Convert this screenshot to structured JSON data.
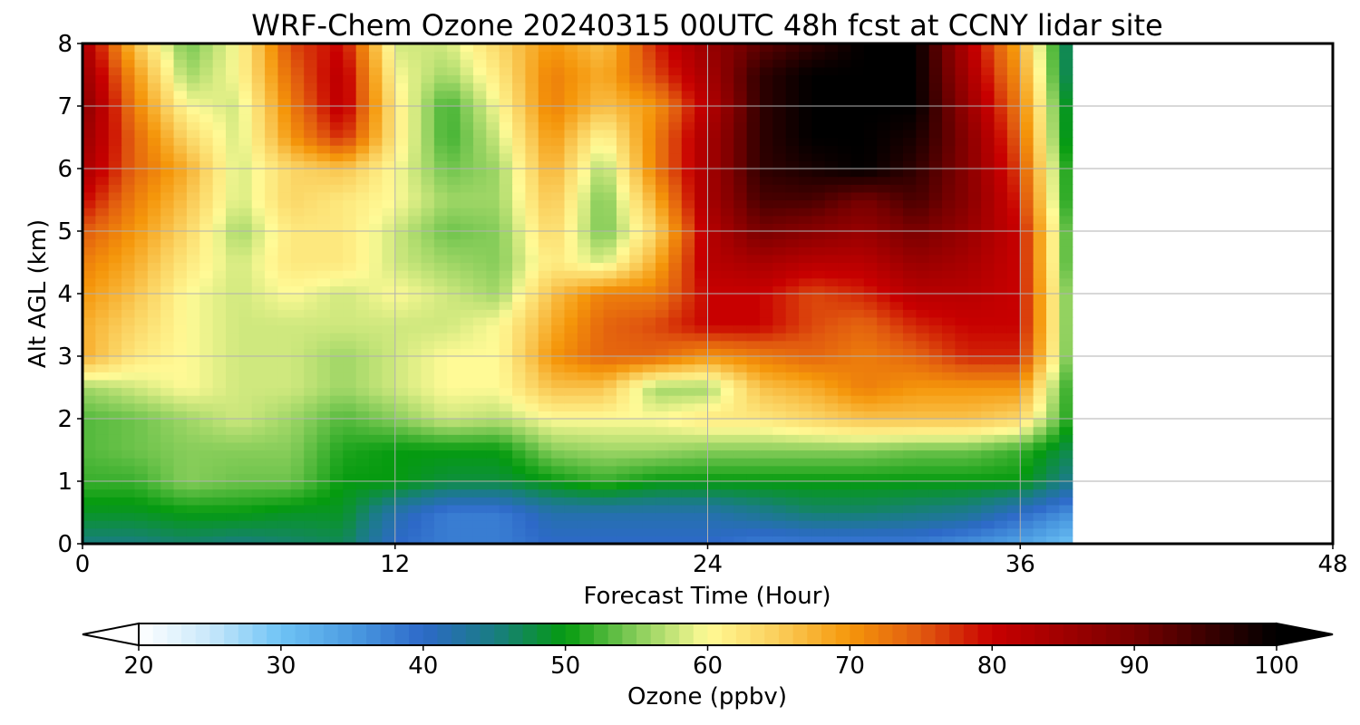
{
  "chart_data": {
    "type": "heatmap",
    "title": "WRF-Chem Ozone  20240315 00UTC 48h fcst at CCNY lidar site",
    "xlabel": "Forecast Time (Hour)",
    "ylabel": "Alt AGL (km)",
    "xlim": [
      0,
      48
    ],
    "ylim": [
      0,
      8
    ],
    "x_ticks": [
      "0",
      "12",
      "24",
      "36",
      "48"
    ],
    "y_ticks": [
      "0",
      "1",
      "2",
      "3",
      "4",
      "5",
      "6",
      "7",
      "8"
    ],
    "grid": true,
    "colorbar": {
      "label": "Ozone  (ppbv)",
      "range": [
        20,
        100
      ],
      "ticks": [
        "20",
        "30",
        "40",
        "50",
        "60",
        "70",
        "80",
        "90",
        "100"
      ],
      "extend": "both"
    },
    "data_extent_hours": 38,
    "x": [
      0,
      2,
      4,
      6,
      8,
      10,
      12,
      14,
      16,
      18,
      20,
      22,
      24,
      26,
      28,
      30,
      32,
      34,
      36,
      38
    ],
    "y": [
      0,
      0.5,
      1,
      1.5,
      2,
      2.5,
      3,
      3.5,
      4,
      4.5,
      5,
      5.5,
      6,
      6.5,
      7,
      7.5,
      8
    ],
    "z": [
      [
        45,
        45,
        46,
        45,
        46,
        47,
        40,
        38,
        38,
        40,
        40,
        40,
        40,
        38,
        38,
        38,
        38,
        36,
        34,
        30
      ],
      [
        49,
        49,
        50,
        50,
        49,
        49,
        42,
        38,
        38,
        42,
        42,
        42,
        42,
        44,
        46,
        46,
        45,
        44,
        40,
        36
      ],
      [
        52,
        52,
        55,
        54,
        54,
        50,
        50,
        48,
        48,
        50,
        52,
        50,
        50,
        50,
        50,
        50,
        50,
        50,
        50,
        44
      ],
      [
        53,
        54,
        55,
        55,
        55,
        51,
        50,
        50,
        50,
        55,
        56,
        56,
        55,
        55,
        55,
        55,
        54,
        54,
        52,
        47
      ],
      [
        53,
        54,
        56,
        58,
        56,
        53,
        55,
        58,
        57,
        60,
        60,
        60,
        62,
        62,
        64,
        66,
        66,
        66,
        64,
        50
      ],
      [
        56,
        58,
        60,
        58,
        58,
        56,
        58,
        60,
        60,
        66,
        66,
        56,
        56,
        66,
        68,
        72,
        70,
        70,
        70,
        50
      ],
      [
        68,
        62,
        60,
        58,
        58,
        56,
        58,
        60,
        60,
        70,
        74,
        74,
        70,
        72,
        74,
        72,
        74,
        78,
        78,
        52
      ],
      [
        68,
        64,
        60,
        58,
        58,
        58,
        58,
        58,
        60,
        68,
        74,
        76,
        80,
        80,
        76,
        74,
        78,
        80,
        80,
        52
      ],
      [
        70,
        66,
        60,
        58,
        60,
        58,
        60,
        58,
        56,
        66,
        72,
        72,
        80,
        80,
        76,
        78,
        82,
        82,
        80,
        52
      ],
      [
        72,
        68,
        62,
        58,
        62,
        62,
        58,
        56,
        55,
        62,
        58,
        68,
        82,
        84,
        82,
        82,
        86,
        84,
        80,
        50
      ],
      [
        75,
        70,
        64,
        56,
        62,
        62,
        58,
        54,
        55,
        64,
        54,
        64,
        82,
        90,
        88,
        86,
        90,
        86,
        80,
        50
      ],
      [
        80,
        72,
        66,
        58,
        64,
        62,
        60,
        56,
        56,
        66,
        54,
        68,
        84,
        94,
        94,
        90,
        94,
        88,
        78,
        48
      ],
      [
        84,
        74,
        68,
        58,
        64,
        66,
        60,
        54,
        56,
        68,
        56,
        72,
        84,
        96,
        98,
        100,
        96,
        88,
        76,
        48
      ],
      [
        86,
        74,
        64,
        58,
        70,
        78,
        62,
        52,
        58,
        70,
        60,
        72,
        84,
        96,
        100,
        100,
        98,
        88,
        74,
        46
      ],
      [
        88,
        72,
        60,
        58,
        72,
        82,
        62,
        52,
        60,
        72,
        66,
        70,
        82,
        96,
        100,
        100,
        100,
        86,
        72,
        46
      ],
      [
        86,
        70,
        56,
        60,
        74,
        82,
        60,
        56,
        62,
        72,
        68,
        76,
        84,
        96,
        100,
        100,
        100,
        84,
        70,
        44
      ],
      [
        84,
        66,
        54,
        60,
        76,
        80,
        58,
        58,
        64,
        70,
        66,
        78,
        86,
        92,
        96,
        100,
        100,
        82,
        68,
        44
      ]
    ]
  }
}
